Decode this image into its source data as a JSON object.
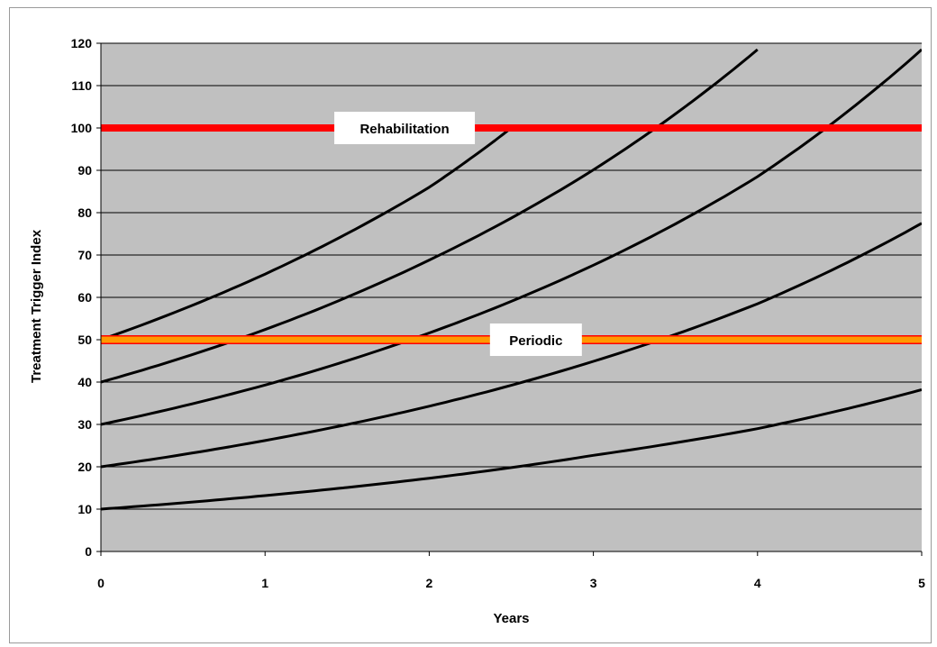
{
  "chart_data": {
    "type": "line",
    "title": "",
    "xlabel": "Years",
    "ylabel": "Treatment Trigger Index",
    "xlim": [
      0,
      5
    ],
    "ylim": [
      0,
      120
    ],
    "x_ticks": [
      "0",
      "1",
      "2",
      "3",
      "4",
      "5"
    ],
    "y_ticks": [
      "0",
      "10",
      "20",
      "30",
      "40",
      "50",
      "60",
      "70",
      "80",
      "90",
      "100",
      "110",
      "120"
    ],
    "grid": true,
    "legend": "none",
    "plot_background": "#c0c0c0",
    "curve_color": "#000000",
    "series": [
      {
        "x": [
          0,
          1,
          2,
          3,
          4,
          5
        ],
        "values": [
          10,
          13.2,
          17.3,
          22.7,
          29.0,
          38.2
        ]
      },
      {
        "x": [
          0,
          1,
          2,
          3,
          4,
          5
        ],
        "values": [
          20,
          26.2,
          34.3,
          44.9,
          58.5,
          77.5
        ]
      },
      {
        "x": [
          0,
          1,
          2,
          3,
          4,
          5
        ],
        "values": [
          30,
          39.3,
          51.6,
          67.6,
          88.5,
          118.5
        ]
      },
      {
        "x": [
          0,
          1,
          2,
          3,
          4
        ],
        "values": [
          40,
          52.4,
          68.8,
          90.1,
          118.5
        ]
      },
      {
        "x": [
          0,
          1,
          2,
          2.5
        ],
        "values": [
          50,
          65.5,
          86.0,
          100
        ]
      }
    ],
    "reference_lines": [
      {
        "label": "Rehabilitation",
        "y": 100,
        "color": "#ff0000",
        "label_x": 1.85
      },
      {
        "label": "Periodic",
        "y": 50,
        "color": "#ff9900",
        "edge_color": "#ff0000",
        "label_x": 2.65
      }
    ]
  }
}
